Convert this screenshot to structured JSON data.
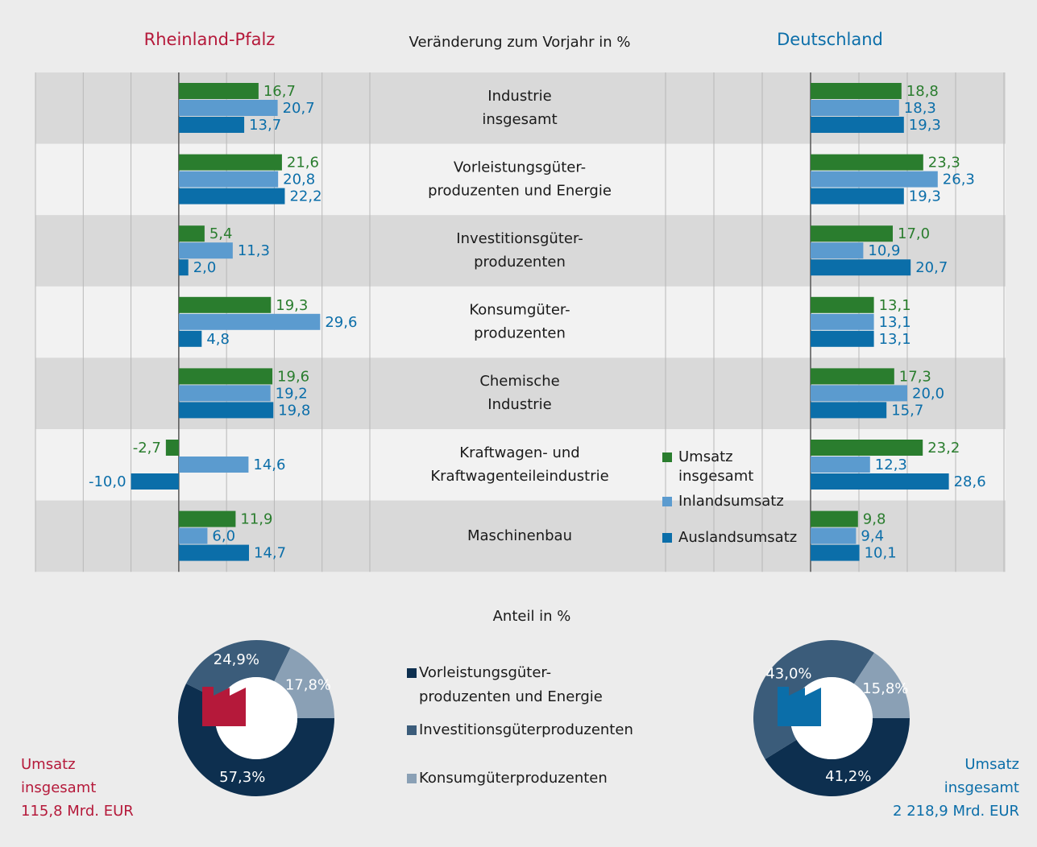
{
  "chart_data": [
    {
      "type": "bar",
      "title": "Rheinland-Pfalz",
      "subtitle": "Veränderung zum Vorjahr in %",
      "categories": [
        "Industrie\ninsgesamt",
        "Vorleistungsgüter-\nproduzenten und Energie",
        "Investitionsgüter-\nproduzenten",
        "Konsumgüter-\nproduzenten",
        "Chemische\nIndustrie",
        "Kraftwagen- und\nKraftwagenteileindustrie",
        "Maschinenbau"
      ],
      "series": [
        {
          "name": "Umsatz\ninsgesamt",
          "color": "#2a7d2e",
          "values": [
            16.7,
            21.6,
            5.4,
            19.3,
            19.6,
            -2.7,
            11.9
          ],
          "value_labels": [
            "16,7",
            "21,6",
            "5,4",
            "19,3",
            "19,6",
            "-2,7",
            "11,9"
          ]
        },
        {
          "name": "Inlandsumsatz",
          "color": "#5b9bcf",
          "values": [
            20.7,
            20.8,
            11.3,
            29.6,
            19.2,
            14.6,
            6.0
          ],
          "value_labels": [
            "20,7",
            "20,8",
            "11,3",
            "29,6",
            "19,2",
            "14,6",
            "6,0"
          ]
        },
        {
          "name": "Auslandsumsatz",
          "color": "#0b6ea9",
          "values": [
            13.7,
            22.2,
            2.0,
            4.8,
            19.8,
            -10.0,
            14.7
          ],
          "value_labels": [
            "13,7",
            "22,2",
            "2,0",
            "4,8",
            "19,8",
            "-10,0",
            "14,7"
          ]
        }
      ],
      "xlim": [
        -30,
        40
      ],
      "xticks": [
        -30,
        -20,
        -10,
        0,
        10,
        20,
        30,
        40
      ],
      "grid": true
    },
    {
      "type": "bar",
      "title": "Deutschland",
      "series": [
        {
          "color": "#2a7d2e",
          "values": [
            18.8,
            23.3,
            17.0,
            13.1,
            17.3,
            23.2,
            9.8
          ],
          "value_labels": [
            "18,8",
            "23,3",
            "17,0",
            "13,1",
            "17,3",
            "23,2",
            "9,8"
          ]
        },
        {
          "color": "#5b9bcf",
          "values": [
            18.3,
            26.3,
            10.9,
            13.1,
            20.0,
            12.3,
            9.4
          ],
          "value_labels": [
            "18,3",
            "26,3",
            "10,9",
            "13,1",
            "20,0",
            "12,3",
            "9,4"
          ]
        },
        {
          "color": "#0b6ea9",
          "values": [
            19.3,
            19.3,
            20.7,
            13.1,
            15.7,
            28.6,
            10.1
          ],
          "value_labels": [
            "19,3",
            "19,3",
            "20,7",
            "13,1",
            "15,7",
            "28,6",
            "10,1"
          ]
        }
      ],
      "xlim": [
        -30,
        40
      ],
      "xticks": [
        -30,
        -20,
        -10,
        0,
        10,
        20,
        30,
        40
      ],
      "grid": true
    },
    {
      "type": "pie",
      "subtitle": "Anteil in %",
      "categories": [
        "Vorleistungsgüter-\nproduzenten und Energie",
        "Investitionsgüterproduzenten",
        "Konsumgüterproduzenten"
      ],
      "colors": [
        "#0d2f4f",
        "#3b5c7a",
        "#8aa0b5"
      ],
      "values": [
        57.3,
        24.9,
        17.8
      ],
      "value_labels": [
        "57,3%",
        "24,9%",
        "17,8%"
      ],
      "annotation": "Umsatz\ninsgesamt\n115,8 Mrd. EUR"
    },
    {
      "type": "pie",
      "colors": [
        "#0d2f4f",
        "#3b5c7a",
        "#8aa0b5"
      ],
      "values": [
        41.2,
        43.0,
        15.8
      ],
      "value_labels": [
        "41,2%",
        "43,0%",
        "15,8%"
      ],
      "annotation": "Umsatz\ninsgesamt\n2 218,9 Mrd. EUR"
    }
  ]
}
